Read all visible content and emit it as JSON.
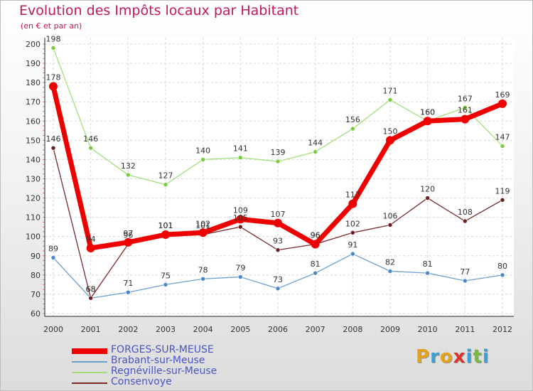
{
  "chart_data": {
    "type": "line",
    "title": "Evolution des Impôts locaux par Habitant",
    "subtitle": "(en € et par an)",
    "ylim": [
      60,
      200
    ],
    "yticks": [
      60,
      70,
      80,
      90,
      100,
      110,
      120,
      130,
      140,
      150,
      160,
      170,
      180,
      190,
      200
    ],
    "categories": [
      "2000",
      "2001",
      "2002",
      "2003",
      "2004",
      "2005",
      "2006",
      "2007",
      "2008",
      "2009",
      "2010",
      "2011",
      "2012"
    ],
    "grid": true,
    "legend_position": "bottom-left",
    "series": [
      {
        "name": "Brabant-sur-Meuse",
        "color": "#6a9fd0",
        "marker": "#4a86c8",
        "values": [
          89,
          68,
          71,
          75,
          78,
          79,
          73,
          81,
          91,
          82,
          81,
          77,
          80
        ]
      },
      {
        "name": "Regnéville-sur-Meuse",
        "color": "#a3e07a",
        "marker": "#7acb3f",
        "values": [
          198,
          146,
          132,
          127,
          140,
          141,
          139,
          144,
          156,
          171,
          160,
          167,
          147
        ]
      },
      {
        "name": "Consenvoye",
        "color": "#7a2a2a",
        "marker": "#6b1f1f",
        "values": [
          146,
          68,
          96,
          101,
          101,
          105,
          93,
          96,
          102,
          106,
          120,
          108,
          119
        ]
      },
      {
        "name": "FORGES-SUR-MEUSE",
        "color": "#ee0000",
        "marker": "#ee0000",
        "values": [
          178,
          94,
          97,
          101,
          102,
          109,
          107,
          96,
          117,
          150,
          160,
          161,
          169
        ]
      }
    ],
    "legend_order": [
      "FORGES-SUR-MEUSE",
      "Brabant-sur-Meuse",
      "Regnéville-sur-Meuse",
      "Consenvoye"
    ]
  },
  "logo": {
    "letters": [
      "P",
      "r",
      "o",
      "x",
      "i",
      "t",
      "i"
    ],
    "colors": [
      "#e3a21a",
      "#3aa0d8",
      "#e3a21a",
      "#d8342a",
      "#3aa0d8",
      "#7ab648",
      "#3aa0d8"
    ]
  }
}
